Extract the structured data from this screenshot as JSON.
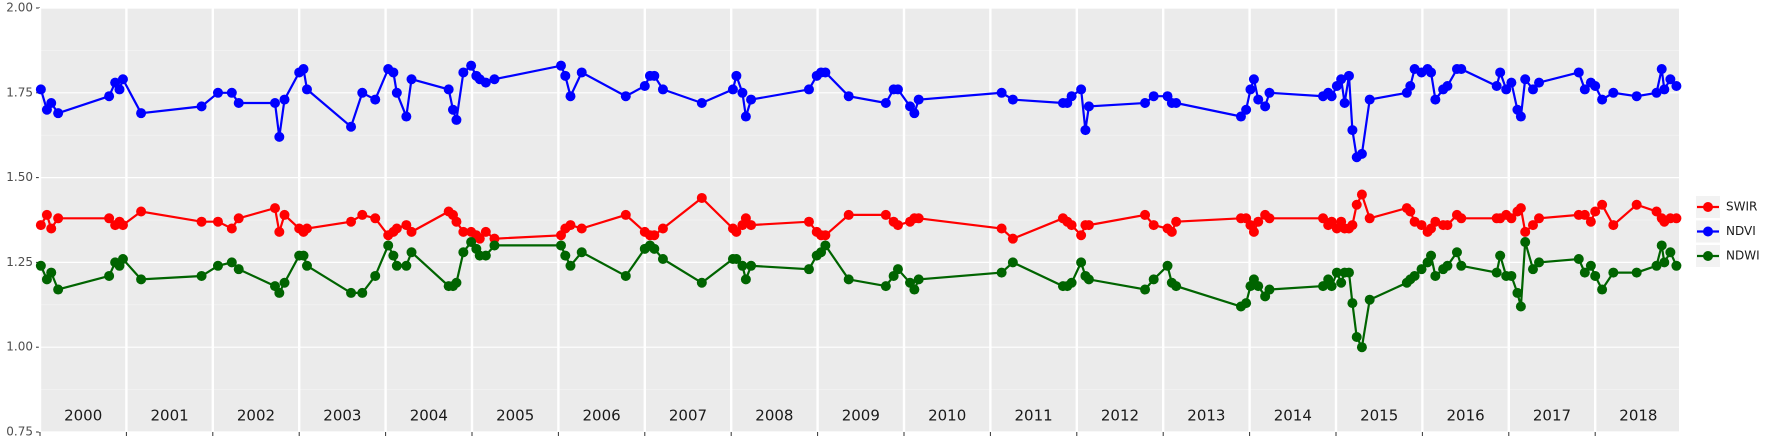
{
  "chart_data": {
    "type": "line",
    "x": [
      2000.01,
      2000.08,
      2000.13,
      2000.21,
      2000.8,
      2000.87,
      2000.92,
      2000.96,
      2001.17,
      2001.87,
      2002.06,
      2002.22,
      2002.3,
      2002.72,
      2002.77,
      2002.83,
      2003.0,
      2003.05,
      2003.09,
      2003.6,
      2003.73,
      2003.88,
      2004.03,
      2004.09,
      2004.13,
      2004.24,
      2004.3,
      2004.73,
      2004.78,
      2004.82,
      2004.9,
      2004.99,
      2005.05,
      2005.09,
      2005.16,
      2005.26,
      2006.03,
      2006.08,
      2006.14,
      2006.27,
      2006.78,
      2007.0,
      2007.06,
      2007.11,
      2007.21,
      2007.66,
      2008.02,
      2008.06,
      2008.13,
      2008.17,
      2008.23,
      2008.9,
      2008.99,
      2009.04,
      2009.09,
      2009.36,
      2009.79,
      2009.88,
      2009.93,
      2010.07,
      2010.12,
      2010.17,
      2011.13,
      2011.26,
      2011.84,
      2011.89,
      2011.94,
      2012.05,
      2012.1,
      2012.14,
      2012.79,
      2012.89,
      2013.05,
      2013.1,
      2013.15,
      2013.9,
      2013.96,
      2014.01,
      2014.05,
      2014.1,
      2014.18,
      2014.23,
      2014.85,
      2014.91,
      2014.95,
      2015.01,
      2015.06,
      2015.1,
      2015.15,
      2015.19,
      2015.24,
      2015.3,
      2015.39,
      2015.82,
      2015.86,
      2015.91,
      2015.99,
      2016.06,
      2016.1,
      2016.15,
      2016.24,
      2016.29,
      2016.4,
      2016.45,
      2016.86,
      2016.9,
      2016.97,
      2017.03,
      2017.1,
      2017.14,
      2017.19,
      2017.28,
      2017.35,
      2017.81,
      2017.88,
      2017.95,
      2018.0,
      2018.08,
      2018.21,
      2018.48,
      2018.71,
      2018.77,
      2018.8,
      2018.87,
      2018.94
    ],
    "series": [
      {
        "name": "SWIR",
        "color": "#ff0000",
        "values": [
          1.36,
          1.39,
          1.35,
          1.38,
          1.38,
          1.36,
          1.37,
          1.36,
          1.4,
          1.37,
          1.37,
          1.35,
          1.38,
          1.41,
          1.34,
          1.39,
          1.35,
          1.34,
          1.35,
          1.37,
          1.39,
          1.38,
          1.33,
          1.34,
          1.35,
          1.36,
          1.34,
          1.4,
          1.39,
          1.37,
          1.34,
          1.34,
          1.33,
          1.32,
          1.34,
          1.32,
          1.33,
          1.35,
          1.36,
          1.35,
          1.39,
          1.34,
          1.33,
          1.33,
          1.35,
          1.44,
          1.35,
          1.34,
          1.36,
          1.38,
          1.36,
          1.37,
          1.34,
          1.33,
          1.33,
          1.39,
          1.39,
          1.37,
          1.36,
          1.37,
          1.38,
          1.38,
          1.35,
          1.32,
          1.38,
          1.37,
          1.36,
          1.33,
          1.36,
          1.36,
          1.39,
          1.36,
          1.35,
          1.34,
          1.37,
          1.38,
          1.38,
          1.36,
          1.34,
          1.37,
          1.39,
          1.38,
          1.38,
          1.36,
          1.37,
          1.35,
          1.37,
          1.35,
          1.35,
          1.36,
          1.42,
          1.45,
          1.38,
          1.41,
          1.4,
          1.37,
          1.36,
          1.34,
          1.35,
          1.37,
          1.36,
          1.36,
          1.39,
          1.38,
          1.38,
          1.38,
          1.39,
          1.38,
          1.4,
          1.41,
          1.34,
          1.36,
          1.38,
          1.39,
          1.39,
          1.37,
          1.4,
          1.42,
          1.36,
          1.42,
          1.4,
          1.38,
          1.37,
          1.38,
          1.38
        ]
      },
      {
        "name": "NDVI",
        "color": "#0000ff",
        "values": [
          1.76,
          1.7,
          1.72,
          1.69,
          1.74,
          1.78,
          1.76,
          1.79,
          1.69,
          1.71,
          1.75,
          1.75,
          1.72,
          1.72,
          1.62,
          1.73,
          1.81,
          1.82,
          1.76,
          1.65,
          1.75,
          1.73,
          1.82,
          1.81,
          1.75,
          1.68,
          1.79,
          1.76,
          1.7,
          1.67,
          1.81,
          1.83,
          1.8,
          1.79,
          1.78,
          1.79,
          1.83,
          1.8,
          1.74,
          1.81,
          1.74,
          1.77,
          1.8,
          1.8,
          1.76,
          1.72,
          1.76,
          1.8,
          1.75,
          1.68,
          1.73,
          1.76,
          1.8,
          1.81,
          1.81,
          1.74,
          1.72,
          1.76,
          1.76,
          1.71,
          1.69,
          1.73,
          1.75,
          1.73,
          1.72,
          1.72,
          1.74,
          1.76,
          1.64,
          1.71,
          1.72,
          1.74,
          1.74,
          1.72,
          1.72,
          1.68,
          1.7,
          1.76,
          1.79,
          1.73,
          1.71,
          1.75,
          1.74,
          1.75,
          1.74,
          1.77,
          1.79,
          1.72,
          1.8,
          1.64,
          1.56,
          1.57,
          1.73,
          1.75,
          1.77,
          1.82,
          1.81,
          1.82,
          1.81,
          1.73,
          1.76,
          1.77,
          1.82,
          1.82,
          1.77,
          1.81,
          1.76,
          1.78,
          1.7,
          1.68,
          1.79,
          1.76,
          1.78,
          1.81,
          1.76,
          1.78,
          1.77,
          1.73,
          1.75,
          1.74,
          1.75,
          1.82,
          1.76,
          1.79,
          1.77
        ]
      },
      {
        "name": "NDWI",
        "color": "#006400",
        "values": [
          1.24,
          1.2,
          1.22,
          1.17,
          1.21,
          1.25,
          1.24,
          1.26,
          1.2,
          1.21,
          1.24,
          1.25,
          1.23,
          1.18,
          1.16,
          1.19,
          1.27,
          1.27,
          1.24,
          1.16,
          1.16,
          1.21,
          1.3,
          1.27,
          1.24,
          1.24,
          1.28,
          1.18,
          1.18,
          1.19,
          1.28,
          1.31,
          1.29,
          1.27,
          1.27,
          1.3,
          1.3,
          1.27,
          1.24,
          1.28,
          1.21,
          1.29,
          1.3,
          1.29,
          1.26,
          1.19,
          1.26,
          1.26,
          1.24,
          1.2,
          1.24,
          1.23,
          1.27,
          1.28,
          1.3,
          1.2,
          1.18,
          1.21,
          1.23,
          1.19,
          1.17,
          1.2,
          1.22,
          1.25,
          1.18,
          1.18,
          1.19,
          1.25,
          1.21,
          1.2,
          1.17,
          1.2,
          1.24,
          1.19,
          1.18,
          1.12,
          1.13,
          1.18,
          1.2,
          1.18,
          1.15,
          1.17,
          1.18,
          1.2,
          1.18,
          1.22,
          1.19,
          1.22,
          1.22,
          1.13,
          1.03,
          1.0,
          1.14,
          1.19,
          1.2,
          1.21,
          1.23,
          1.25,
          1.27,
          1.21,
          1.23,
          1.24,
          1.28,
          1.24,
          1.22,
          1.27,
          1.21,
          1.21,
          1.16,
          1.12,
          1.31,
          1.23,
          1.25,
          1.26,
          1.22,
          1.24,
          1.21,
          1.17,
          1.22,
          1.22,
          1.24,
          1.3,
          1.25,
          1.28,
          1.24
        ]
      }
    ],
    "xlim": [
      2000,
      2018.97
    ],
    "ylim": [
      0.75,
      2
    ],
    "yticks": [
      0.75,
      {
        "value": 1,
        "label": "1.00"
      },
      1.25,
      {
        "value": 1.5,
        "label": "1.50"
      },
      1.75,
      {
        "value": 2,
        "label": "2.00"
      }
    ],
    "year_labels": [
      2000,
      2001,
      2002,
      2003,
      2004,
      2005,
      2006,
      2007,
      2008,
      2009,
      2010,
      2011,
      2012,
      2013,
      2014,
      2015,
      2016,
      2017,
      2018
    ],
    "grid": true,
    "legend": "right"
  }
}
